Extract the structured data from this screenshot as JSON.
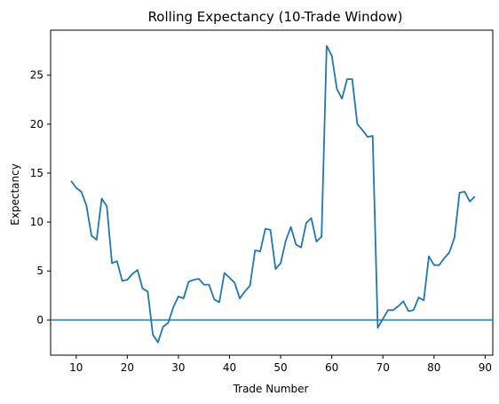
{
  "chart_data": {
    "type": "line",
    "title": "Rolling Expectancy (10-Trade Window)",
    "xlabel": "Trade Number",
    "ylabel": "Expectancy",
    "xlim": [
      5,
      91.5
    ],
    "ylim": [
      -3.6,
      29.6
    ],
    "xticks": [
      10,
      20,
      30,
      40,
      50,
      60,
      70,
      80,
      90
    ],
    "yticks": [
      0,
      5,
      10,
      15,
      20,
      25
    ],
    "grid": false,
    "reference_line": {
      "y": 0,
      "color": "#1f77b4"
    },
    "series": [
      {
        "color": "#1f77b4",
        "x": [
          9,
          10,
          11,
          12,
          13,
          14,
          15,
          16,
          17,
          18,
          19,
          20,
          21,
          22,
          23,
          24,
          25,
          26,
          27,
          28,
          29,
          30,
          31,
          32,
          33,
          34,
          35,
          36,
          37,
          38,
          39,
          40,
          41,
          42,
          43,
          44,
          45,
          46,
          47,
          48,
          49,
          50,
          51,
          52,
          53,
          54,
          55,
          56,
          57,
          58,
          59,
          60,
          61,
          62,
          63,
          64,
          65,
          66,
          67,
          68,
          69,
          70,
          71,
          72,
          73,
          74,
          75,
          76,
          77,
          78,
          79,
          80,
          81,
          82,
          83,
          84,
          85,
          86,
          87,
          88
        ],
        "y": [
          14.2,
          13.5,
          13.1,
          11.7,
          8.6,
          8.2,
          12.4,
          11.6,
          5.8,
          6.0,
          4.0,
          4.1,
          4.7,
          5.1,
          3.2,
          2.9,
          -1.5,
          -2.3,
          -0.7,
          -0.3,
          1.3,
          2.4,
          2.2,
          3.9,
          4.1,
          4.2,
          3.6,
          3.6,
          2.1,
          1.8,
          4.8,
          4.3,
          3.8,
          2.2,
          2.9,
          3.5,
          7.1,
          7.0,
          9.3,
          9.2,
          5.2,
          5.8,
          8.1,
          9.5,
          7.7,
          7.4,
          9.9,
          10.4,
          8.0,
          8.5,
          28.0,
          27.0,
          23.6,
          22.6,
          24.6,
          24.6,
          20.0,
          19.4,
          18.7,
          18.8,
          -0.8,
          0.1,
          1.0,
          1.0,
          1.4,
          1.9,
          0.9,
          1.0,
          2.3,
          2.0,
          6.5,
          5.6,
          5.6,
          6.3,
          6.9,
          8.4,
          13.0,
          13.1,
          12.1,
          12.6
        ]
      }
    ]
  }
}
